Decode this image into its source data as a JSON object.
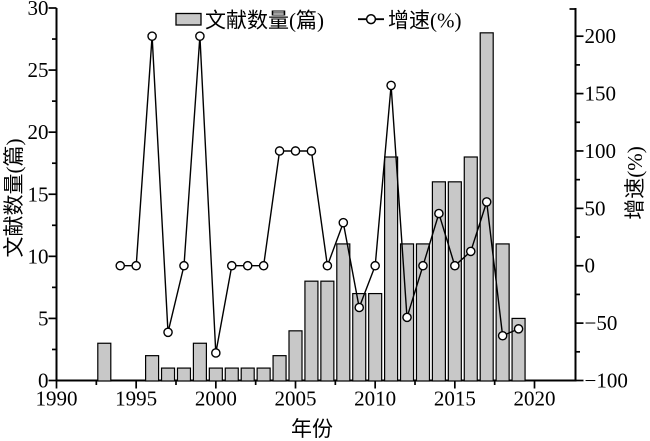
{
  "chart": {
    "title": "",
    "legend": {
      "bar_label": "文献数量(篇)",
      "line_label": "增速(%)"
    },
    "axes": {
      "x_title": "年份",
      "y_left_title": "文献数量(篇)",
      "y_right_title": "增速(%)"
    },
    "colors": {
      "background": "#ffffff",
      "bar_fill": "#c8c8c8",
      "bar_stroke": "#000000",
      "line": "#000000",
      "marker_fill": "#ffffff",
      "marker_stroke": "#000000",
      "axis": "#000000",
      "text": "#000000"
    }
  },
  "chart_data": {
    "type": "combo",
    "title": "",
    "xlabel": "年份",
    "ylabel_left": "文献数量(篇)",
    "ylabel_right": "增速(%)",
    "grid": false,
    "legend_position": "top-center-inside",
    "xlim": [
      1990,
      2022.5
    ],
    "ylim_left": [
      0,
      30
    ],
    "ylim_right": [
      -100,
      225
    ],
    "x_major_ticks": [
      1990,
      1995,
      2000,
      2005,
      2010,
      2015,
      2020
    ],
    "x_minor_ticks": [
      1992.5,
      1997.5,
      2002.5,
      2007.5,
      2012.5,
      2017.5
    ],
    "y_left_major_ticks": [
      0,
      5,
      10,
      15,
      20,
      25,
      30
    ],
    "y_left_minor_ticks": [
      2.5,
      7.5,
      12.5,
      17.5,
      22.5,
      27.5
    ],
    "y_right_major_ticks": [
      -100,
      -50,
      0,
      50,
      100,
      150,
      200
    ],
    "y_right_minor_ticks": [
      -75,
      -25,
      25,
      75,
      125,
      175,
      225
    ],
    "categories": [
      1993,
      1994,
      1995,
      1996,
      1997,
      1998,
      1999,
      2000,
      2001,
      2002,
      2003,
      2004,
      2005,
      2006,
      2007,
      2008,
      2009,
      2010,
      2011,
      2012,
      2013,
      2014,
      2015,
      2016,
      2017,
      2018,
      2019
    ],
    "series": [
      {
        "name": "文献数量(篇)",
        "type": "bar",
        "yaxis": "left",
        "x": [
          1993,
          1994,
          1995,
          1996,
          1997,
          1998,
          1999,
          2000,
          2001,
          2002,
          2003,
          2004,
          2005,
          2006,
          2007,
          2008,
          2009,
          2010,
          2011,
          2012,
          2013,
          2014,
          2015,
          2016,
          2017,
          2018,
          2019
        ],
        "values": [
          3,
          0,
          0,
          2,
          1,
          1,
          3,
          1,
          1,
          1,
          1,
          2,
          4,
          8,
          8,
          11,
          7,
          7,
          18,
          11,
          11,
          16,
          16,
          18,
          28,
          11,
          5
        ]
      },
      {
        "name": "增速(%)",
        "type": "line",
        "marker": "open-circle",
        "yaxis": "right",
        "x": [
          1994,
          1995,
          1996,
          1997,
          1998,
          1999,
          2000,
          2001,
          2002,
          2003,
          2004,
          2005,
          2006,
          2007,
          2008,
          2009,
          2010,
          2011,
          2012,
          2013,
          2014,
          2015,
          2016,
          2017,
          2018,
          2019
        ],
        "values": [
          0,
          0,
          200,
          -58,
          0,
          200,
          -76,
          0,
          0,
          0,
          100,
          100,
          100,
          0,
          37.5,
          -36.4,
          0,
          157.1,
          -45,
          0,
          45.5,
          0,
          12.5,
          55.6,
          -61,
          -55
        ]
      }
    ]
  }
}
